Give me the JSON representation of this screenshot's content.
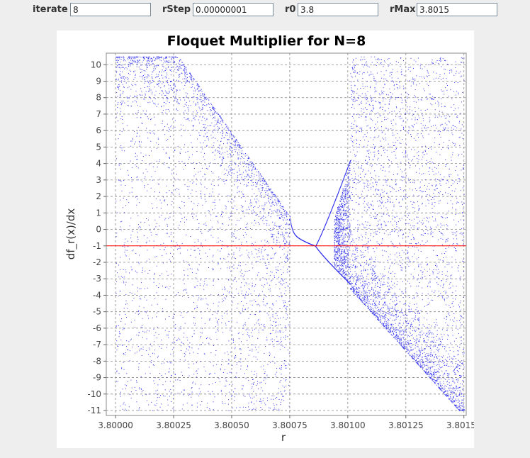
{
  "controls": {
    "iterate": {
      "label": "iterate",
      "value": "8"
    },
    "rStep": {
      "label": "rStep",
      "value": "0.00000001"
    },
    "r0": {
      "label": "r0",
      "value": "3.8"
    },
    "rMax": {
      "label": "rMax",
      "value": "3.8015"
    }
  },
  "chart_data": {
    "type": "scatter",
    "title": "Floquet Multiplier for N=8",
    "xlabel": "r",
    "ylabel": "df_r(x)/dx",
    "xlim": [
      3.79996,
      3.80151
    ],
    "ylim": [
      -11.3,
      10.7
    ],
    "x_ticks": [
      3.8,
      3.80025,
      3.8005,
      3.80075,
      3.801,
      3.80125,
      3.8015
    ],
    "x_tick_labels": [
      "3.80000",
      "3.80025",
      "3.80050",
      "3.80075",
      "3.80100",
      "3.80125",
      "3.80150"
    ],
    "y_ticks": [
      10,
      9,
      8,
      7,
      6,
      5,
      4,
      3,
      2,
      1,
      0,
      -1,
      -2,
      -3,
      -4,
      -5,
      -6,
      -7,
      -8,
      -9,
      -10,
      -11
    ],
    "y_tick_labels": [
      "10",
      "9",
      "8",
      "7",
      "6",
      "5",
      "4",
      "3",
      "2",
      "1",
      "0",
      "-1",
      "-2",
      "-3",
      "-4",
      "-5",
      "-6",
      "-7",
      "-8",
      "-9",
      "-10",
      "-11"
    ],
    "grid": true,
    "reference_line": {
      "y": -1,
      "color": "#ff0000"
    },
    "point_color": "#3333ee",
    "approx_structure": {
      "chaotic_band_left": {
        "x_range": [
          3.8,
          3.80075
        ],
        "y_range": [
          -11,
          10.5
        ],
        "edge_from": [
          3.80027,
          10.5
        ],
        "edge_to": [
          3.80075,
          0.8
        ]
      },
      "stable_branch": {
        "x_range": [
          3.80075,
          3.80086
        ],
        "y_from": 0.0,
        "y_to": -1.0
      },
      "period_doubled_branches": {
        "x_range": [
          3.80086,
          3.80101
        ],
        "upper_to": 4.2,
        "lower_to": -3.3
      },
      "chaotic_band_right": {
        "x_range": [
          3.80101,
          3.8015
        ],
        "y_range": [
          -11,
          10.5
        ],
        "edge_from": [
          3.80101,
          -3.6
        ],
        "edge_to": [
          3.80148,
          -11.0
        ]
      }
    }
  }
}
